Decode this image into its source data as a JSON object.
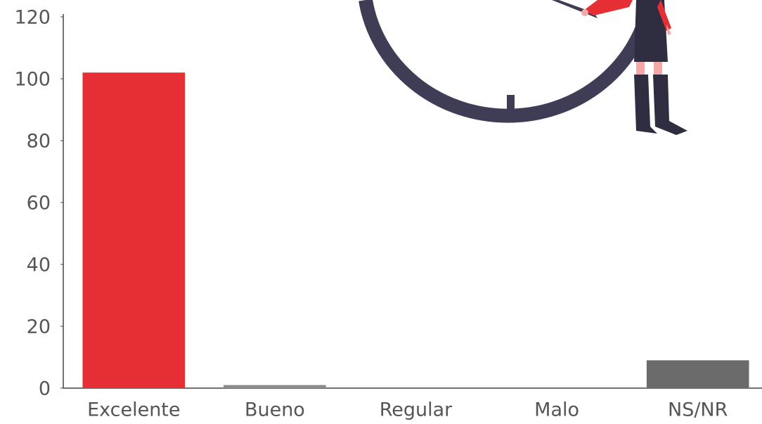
{
  "chart_data": {
    "type": "bar",
    "categories": [
      "Excelente",
      "Bueno",
      "Regular",
      "Malo",
      "NS/NR"
    ],
    "values": [
      102,
      1,
      0,
      0,
      9
    ],
    "colors": [
      "#e52f34",
      "#8c8c8c",
      "#8c8c8c",
      "#8c8c8c",
      "#6b6b6b"
    ],
    "ylim": [
      0,
      120
    ],
    "yticks": [
      0,
      20,
      40,
      60,
      80,
      100,
      120
    ],
    "grid": false
  }
}
